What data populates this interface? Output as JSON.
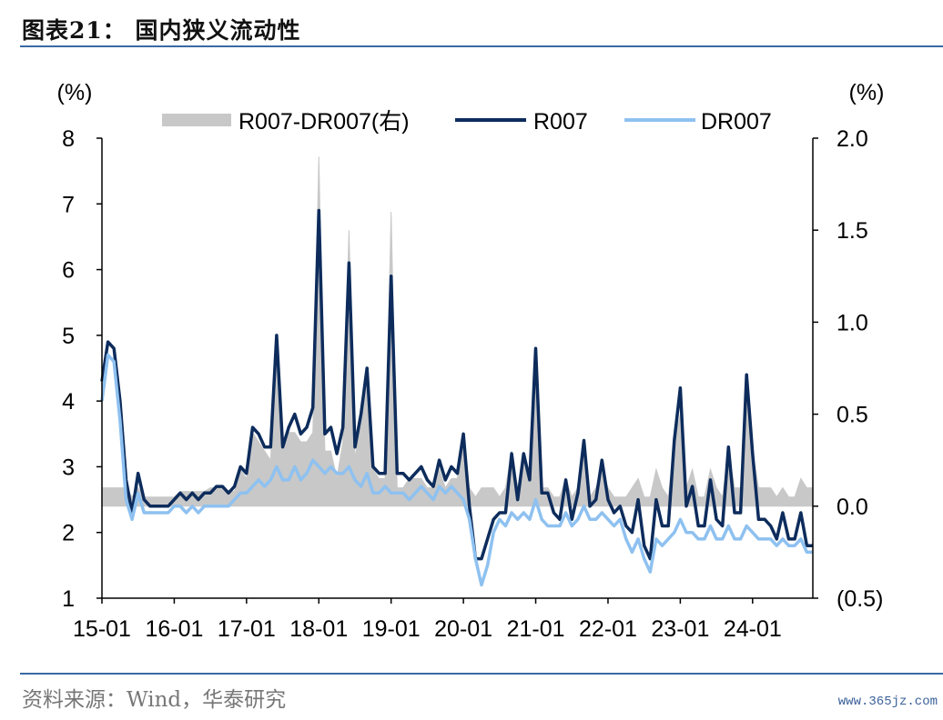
{
  "header": {
    "title": "图表21：  国内狭义流动性"
  },
  "footer": {
    "source": "资料来源：Wind，华泰研究",
    "watermark": "www.365jz.com"
  },
  "colors": {
    "r007": "#0d2c5c",
    "dr007": "#8ec1f0",
    "spread": "#c8c8c8",
    "rule": "#3a6aa3"
  },
  "chart_data": {
    "type": "line",
    "title": "",
    "y_left": {
      "unit_label": "(%)",
      "range": [
        1,
        8
      ],
      "ticks": [
        "1",
        "2",
        "3",
        "4",
        "5",
        "6",
        "7",
        "8"
      ]
    },
    "y_right": {
      "unit_label": "(%)",
      "range": [
        -0.5,
        2.0
      ],
      "ticks": [
        "(0.5)",
        "0.0",
        "0.5",
        "1.0",
        "1.5",
        "2.0"
      ]
    },
    "x_axis": {
      "range": [
        "2015-01",
        "2024-11"
      ],
      "ticks": [
        "15-01",
        "16-01",
        "17-01",
        "18-01",
        "19-01",
        "20-01",
        "21-01",
        "22-01",
        "23-01",
        "24-01"
      ]
    },
    "legend": {
      "placement": "top-center",
      "entries": [
        "R007-DR007(右)",
        "R007",
        "DR007"
      ]
    },
    "series": [
      {
        "name": "R007",
        "axis": "left",
        "kind": "line",
        "x": [
          "2015-01",
          "2015-02",
          "2015-03",
          "2015-04",
          "2015-05",
          "2015-06",
          "2015-07",
          "2015-08",
          "2015-09",
          "2015-10",
          "2015-11",
          "2015-12",
          "2016-01",
          "2016-02",
          "2016-03",
          "2016-04",
          "2016-05",
          "2016-06",
          "2016-07",
          "2016-08",
          "2016-09",
          "2016-10",
          "2016-11",
          "2016-12",
          "2017-01",
          "2017-02",
          "2017-03",
          "2017-04",
          "2017-05",
          "2017-06",
          "2017-07",
          "2017-08",
          "2017-09",
          "2017-10",
          "2017-11",
          "2017-12",
          "2018-01",
          "2018-02",
          "2018-03",
          "2018-04",
          "2018-05",
          "2018-06",
          "2018-07",
          "2018-08",
          "2018-09",
          "2018-10",
          "2018-11",
          "2018-12",
          "2019-01",
          "2019-02",
          "2019-03",
          "2019-04",
          "2019-05",
          "2019-06",
          "2019-07",
          "2019-08",
          "2019-09",
          "2019-10",
          "2019-11",
          "2019-12",
          "2020-01",
          "2020-02",
          "2020-03",
          "2020-04",
          "2020-05",
          "2020-06",
          "2020-07",
          "2020-08",
          "2020-09",
          "2020-10",
          "2020-11",
          "2020-12",
          "2021-01",
          "2021-02",
          "2021-03",
          "2021-04",
          "2021-05",
          "2021-06",
          "2021-07",
          "2021-08",
          "2021-09",
          "2021-10",
          "2021-11",
          "2021-12",
          "2022-01",
          "2022-02",
          "2022-03",
          "2022-04",
          "2022-05",
          "2022-06",
          "2022-07",
          "2022-08",
          "2022-09",
          "2022-10",
          "2022-11",
          "2022-12",
          "2023-01",
          "2023-02",
          "2023-03",
          "2023-04",
          "2023-05",
          "2023-06",
          "2023-07",
          "2023-08",
          "2023-09",
          "2023-10",
          "2023-11",
          "2023-12",
          "2024-01",
          "2024-02",
          "2024-03",
          "2024-04",
          "2024-05",
          "2024-06",
          "2024-07",
          "2024-08",
          "2024-09",
          "2024-10",
          "2024-11"
        ],
        "values": [
          4.3,
          4.9,
          4.8,
          4.0,
          2.8,
          2.3,
          2.9,
          2.5,
          2.4,
          2.4,
          2.4,
          2.4,
          2.5,
          2.6,
          2.5,
          2.6,
          2.5,
          2.6,
          2.6,
          2.7,
          2.7,
          2.6,
          2.7,
          3.0,
          2.9,
          3.6,
          3.5,
          3.3,
          3.3,
          5.0,
          3.3,
          3.6,
          3.8,
          3.5,
          3.6,
          3.9,
          6.9,
          3.5,
          3.6,
          3.2,
          3.6,
          6.1,
          3.3,
          3.8,
          4.5,
          3.0,
          2.9,
          2.9,
          5.9,
          2.9,
          2.9,
          2.8,
          2.9,
          3.0,
          2.8,
          2.7,
          3.1,
          2.8,
          3.0,
          2.9,
          3.5,
          2.4,
          1.6,
          1.6,
          1.9,
          2.2,
          2.3,
          2.3,
          3.2,
          2.5,
          3.2,
          2.8,
          4.8,
          2.6,
          2.6,
          2.3,
          2.2,
          2.8,
          2.2,
          2.6,
          3.4,
          2.4,
          2.5,
          3.1,
          2.5,
          2.3,
          2.4,
          2.1,
          2.0,
          2.5,
          1.8,
          1.6,
          2.5,
          2.1,
          2.1,
          3.4,
          4.2,
          2.4,
          2.7,
          2.1,
          2.1,
          2.8,
          2.2,
          2.1,
          3.3,
          2.3,
          2.3,
          4.4,
          3.2,
          2.2,
          2.2,
          2.1,
          1.9,
          2.3,
          1.9,
          1.9,
          2.3,
          1.8,
          1.8
        ]
      },
      {
        "name": "DR007",
        "axis": "left",
        "kind": "line",
        "x": [
          "2015-01",
          "2015-02",
          "2015-03",
          "2015-04",
          "2015-05",
          "2015-06",
          "2015-07",
          "2015-08",
          "2015-09",
          "2015-10",
          "2015-11",
          "2015-12",
          "2016-01",
          "2016-02",
          "2016-03",
          "2016-04",
          "2016-05",
          "2016-06",
          "2016-07",
          "2016-08",
          "2016-09",
          "2016-10",
          "2016-11",
          "2016-12",
          "2017-01",
          "2017-02",
          "2017-03",
          "2017-04",
          "2017-05",
          "2017-06",
          "2017-07",
          "2017-08",
          "2017-09",
          "2017-10",
          "2017-11",
          "2017-12",
          "2018-01",
          "2018-02",
          "2018-03",
          "2018-04",
          "2018-05",
          "2018-06",
          "2018-07",
          "2018-08",
          "2018-09",
          "2018-10",
          "2018-11",
          "2018-12",
          "2019-01",
          "2019-02",
          "2019-03",
          "2019-04",
          "2019-05",
          "2019-06",
          "2019-07",
          "2019-08",
          "2019-09",
          "2019-10",
          "2019-11",
          "2019-12",
          "2020-01",
          "2020-02",
          "2020-03",
          "2020-04",
          "2020-05",
          "2020-06",
          "2020-07",
          "2020-08",
          "2020-09",
          "2020-10",
          "2020-11",
          "2020-12",
          "2021-01",
          "2021-02",
          "2021-03",
          "2021-04",
          "2021-05",
          "2021-06",
          "2021-07",
          "2021-08",
          "2021-09",
          "2021-10",
          "2021-11",
          "2021-12",
          "2022-01",
          "2022-02",
          "2022-03",
          "2022-04",
          "2022-05",
          "2022-06",
          "2022-07",
          "2022-08",
          "2022-09",
          "2022-10",
          "2022-11",
          "2022-12",
          "2023-01",
          "2023-02",
          "2023-03",
          "2023-04",
          "2023-05",
          "2023-06",
          "2023-07",
          "2023-08",
          "2023-09",
          "2023-10",
          "2023-11",
          "2023-12",
          "2024-01",
          "2024-02",
          "2024-03",
          "2024-04",
          "2024-05",
          "2024-06",
          "2024-07",
          "2024-08",
          "2024-09",
          "2024-10",
          "2024-11"
        ],
        "values": [
          4.0,
          4.7,
          4.6,
          3.7,
          2.5,
          2.2,
          2.6,
          2.3,
          2.3,
          2.3,
          2.3,
          2.3,
          2.4,
          2.4,
          2.3,
          2.4,
          2.3,
          2.4,
          2.4,
          2.4,
          2.4,
          2.4,
          2.5,
          2.6,
          2.6,
          2.7,
          2.8,
          2.7,
          2.8,
          3.0,
          2.8,
          2.8,
          3.0,
          2.8,
          2.9,
          3.1,
          3.0,
          2.9,
          3.0,
          2.9,
          2.9,
          3.0,
          2.8,
          2.7,
          2.9,
          2.6,
          2.6,
          2.7,
          2.6,
          2.6,
          2.6,
          2.5,
          2.6,
          2.7,
          2.6,
          2.5,
          2.7,
          2.6,
          2.7,
          2.6,
          2.5,
          2.2,
          1.6,
          1.2,
          1.5,
          2.0,
          2.2,
          2.1,
          2.3,
          2.2,
          2.3,
          2.2,
          2.5,
          2.2,
          2.1,
          2.1,
          2.1,
          2.3,
          2.1,
          2.2,
          2.4,
          2.2,
          2.2,
          2.3,
          2.2,
          2.1,
          2.2,
          1.9,
          1.7,
          1.9,
          1.6,
          1.4,
          1.9,
          1.8,
          1.9,
          2.0,
          2.2,
          2.0,
          2.0,
          1.9,
          1.9,
          2.1,
          1.9,
          1.9,
          2.1,
          1.9,
          1.9,
          2.1,
          2.0,
          1.9,
          1.9,
          1.9,
          1.8,
          1.9,
          1.8,
          1.8,
          1.9,
          1.7,
          1.7
        ]
      },
      {
        "name": "R007-DR007(右)",
        "axis": "right",
        "kind": "area",
        "x": [
          "2015-01",
          "2015-02",
          "2015-03",
          "2015-04",
          "2015-05",
          "2015-06",
          "2015-07",
          "2015-08",
          "2015-09",
          "2015-10",
          "2015-11",
          "2015-12",
          "2016-01",
          "2016-02",
          "2016-03",
          "2016-04",
          "2016-05",
          "2016-06",
          "2016-07",
          "2016-08",
          "2016-09",
          "2016-10",
          "2016-11",
          "2016-12",
          "2017-01",
          "2017-02",
          "2017-03",
          "2017-04",
          "2017-05",
          "2017-06",
          "2017-07",
          "2017-08",
          "2017-09",
          "2017-10",
          "2017-11",
          "2017-12",
          "2018-01",
          "2018-02",
          "2018-03",
          "2018-04",
          "2018-05",
          "2018-06",
          "2018-07",
          "2018-08",
          "2018-09",
          "2018-10",
          "2018-11",
          "2018-12",
          "2019-01",
          "2019-02",
          "2019-03",
          "2019-04",
          "2019-05",
          "2019-06",
          "2019-07",
          "2019-08",
          "2019-09",
          "2019-10",
          "2019-11",
          "2019-12",
          "2020-01",
          "2020-02",
          "2020-03",
          "2020-04",
          "2020-05",
          "2020-06",
          "2020-07",
          "2020-08",
          "2020-09",
          "2020-10",
          "2020-11",
          "2020-12",
          "2021-01",
          "2021-02",
          "2021-03",
          "2021-04",
          "2021-05",
          "2021-06",
          "2021-07",
          "2021-08",
          "2021-09",
          "2021-10",
          "2021-11",
          "2021-12",
          "2022-01",
          "2022-02",
          "2022-03",
          "2022-04",
          "2022-05",
          "2022-06",
          "2022-07",
          "2022-08",
          "2022-09",
          "2022-10",
          "2022-11",
          "2022-12",
          "2023-01",
          "2023-02",
          "2023-03",
          "2023-04",
          "2023-05",
          "2023-06",
          "2023-07",
          "2023-08",
          "2023-09",
          "2023-10",
          "2023-11",
          "2023-12",
          "2024-01",
          "2024-02",
          "2024-03",
          "2024-04",
          "2024-05",
          "2024-06",
          "2024-07",
          "2024-08",
          "2024-09",
          "2024-10",
          "2024-11"
        ],
        "values": [
          0.1,
          0.1,
          0.1,
          0.1,
          0.1,
          0.05,
          0.1,
          0.05,
          0.05,
          0.05,
          0.05,
          0.05,
          0.05,
          0.08,
          0.08,
          0.08,
          0.08,
          0.08,
          0.1,
          0.1,
          0.1,
          0.08,
          0.08,
          0.2,
          0.15,
          0.4,
          0.35,
          0.3,
          0.25,
          0.9,
          0.3,
          0.4,
          0.4,
          0.35,
          0.35,
          0.4,
          1.9,
          0.3,
          0.3,
          0.15,
          0.35,
          1.5,
          0.25,
          0.5,
          0.75,
          0.2,
          0.15,
          0.15,
          1.6,
          0.1,
          0.1,
          0.15,
          0.15,
          0.15,
          0.1,
          0.1,
          0.2,
          0.1,
          0.15,
          0.15,
          0.4,
          0.1,
          0.05,
          0.1,
          0.1,
          0.1,
          0.05,
          0.1,
          0.3,
          0.1,
          0.25,
          0.15,
          0.7,
          0.1,
          0.1,
          0.05,
          0.05,
          0.15,
          0.05,
          0.1,
          0.3,
          0.05,
          0.1,
          0.2,
          0.1,
          0.05,
          0.05,
          0.05,
          0.1,
          0.15,
          0.05,
          0.05,
          0.2,
          0.1,
          0.05,
          0.35,
          0.5,
          0.1,
          0.2,
          0.05,
          0.05,
          0.2,
          0.1,
          0.05,
          0.3,
          0.1,
          0.1,
          0.6,
          0.3,
          0.1,
          0.1,
          0.1,
          0.05,
          0.1,
          0.05,
          0.05,
          0.15,
          0.1,
          0.1
        ]
      }
    ]
  }
}
